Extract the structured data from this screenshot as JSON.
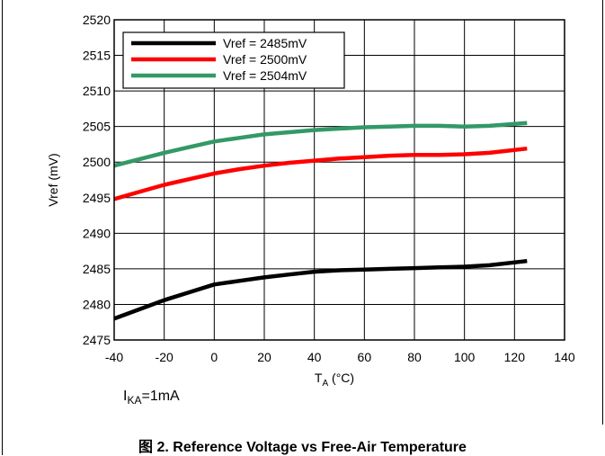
{
  "chart_data": {
    "type": "line",
    "xlabel_main": "T",
    "xlabel_sub": "A",
    "xlabel_unit": " (°C)",
    "ylabel": "Vref (mV)",
    "xlim": [
      -40,
      140
    ],
    "ylim": [
      2475,
      2520
    ],
    "xticks": [
      -40,
      -20,
      0,
      20,
      40,
      60,
      80,
      100,
      120,
      140
    ],
    "yticks": [
      2475,
      2480,
      2485,
      2490,
      2495,
      2500,
      2505,
      2510,
      2515,
      2520
    ],
    "grid": true,
    "legend_position": "top-left",
    "series": [
      {
        "name": "Vref = 2485mV",
        "color": "#000000",
        "x": [
          -40,
          -30,
          -20,
          -10,
          0,
          10,
          20,
          30,
          40,
          50,
          60,
          70,
          80,
          90,
          100,
          110,
          125
        ],
        "y": [
          2478.0,
          2479.3,
          2480.6,
          2481.7,
          2482.8,
          2483.3,
          2483.8,
          2484.2,
          2484.6,
          2484.8,
          2484.9,
          2485.0,
          2485.1,
          2485.2,
          2485.3,
          2485.5,
          2486.1
        ]
      },
      {
        "name": "Vref = 2500mV",
        "color": "#ff0000",
        "x": [
          -40,
          -30,
          -20,
          -10,
          0,
          10,
          20,
          30,
          40,
          50,
          60,
          70,
          80,
          90,
          100,
          110,
          125
        ],
        "y": [
          2494.8,
          2495.8,
          2496.8,
          2497.6,
          2498.4,
          2499.0,
          2499.5,
          2499.9,
          2500.2,
          2500.5,
          2500.7,
          2500.9,
          2501.0,
          2501.0,
          2501.1,
          2501.3,
          2501.9
        ]
      },
      {
        "name": "Vref = 2504mV",
        "color": "#339966",
        "x": [
          -40,
          -30,
          -20,
          -10,
          0,
          10,
          20,
          30,
          40,
          50,
          60,
          70,
          80,
          90,
          100,
          110,
          125
        ],
        "y": [
          2499.5,
          2500.4,
          2501.3,
          2502.1,
          2502.9,
          2503.4,
          2503.9,
          2504.2,
          2504.5,
          2504.7,
          2504.9,
          2505.0,
          2505.1,
          2505.1,
          2505.0,
          2505.1,
          2505.5
        ]
      }
    ]
  },
  "annotation": {
    "main": "I",
    "sub": "KA",
    "rest": "=1mA"
  },
  "caption": "图 2. Reference Voltage vs Free-Air Temperature"
}
